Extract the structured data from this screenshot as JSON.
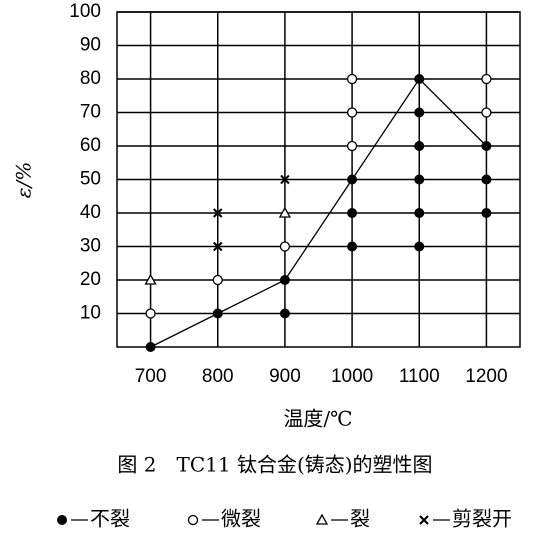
{
  "chart_data": {
    "type": "scatter",
    "title": "图 2　TC11 钛合金(铸态)的塑性图",
    "x_label": "温度/℃",
    "y_label": "ε/%",
    "xlim": [
      650,
      1250
    ],
    "xticks": [
      700,
      800,
      900,
      1000,
      1100,
      1200
    ],
    "ylim": [
      0,
      100
    ],
    "yticks": [
      10,
      20,
      30,
      40,
      50,
      60,
      70,
      80,
      90,
      100
    ],
    "grid": true,
    "legend": "bottom",
    "series": [
      {
        "name": "不裂",
        "marker": "filled-circle",
        "color": "#000000",
        "x": [
          700,
          800,
          900,
          900,
          1000,
          1000,
          1000,
          1100,
          1100,
          1100,
          1100,
          1100,
          1100,
          1200,
          1200,
          1200
        ],
        "values": [
          0,
          10,
          10,
          20,
          30,
          40,
          50,
          30,
          40,
          50,
          60,
          70,
          80,
          40,
          50,
          60
        ]
      },
      {
        "name": "微裂",
        "marker": "open-circle",
        "color": "#000000",
        "x": [
          700,
          800,
          900,
          1000,
          1000,
          1000,
          1200,
          1200
        ],
        "values": [
          10,
          20,
          30,
          60,
          70,
          80,
          70,
          80
        ]
      },
      {
        "name": "裂",
        "marker": "triangle",
        "color": "#000000",
        "x": [
          700,
          900
        ],
        "values": [
          20,
          40
        ]
      },
      {
        "name": "剪裂开",
        "marker": "cross",
        "color": "#000000",
        "x": [
          800,
          800,
          900
        ],
        "values": [
          30,
          40,
          50
        ]
      }
    ],
    "boundary": {
      "color": "#000000",
      "x": [
        700,
        800,
        900,
        1000,
        1100,
        1200
      ],
      "values": [
        0,
        10,
        20,
        50,
        80,
        60
      ]
    }
  }
}
